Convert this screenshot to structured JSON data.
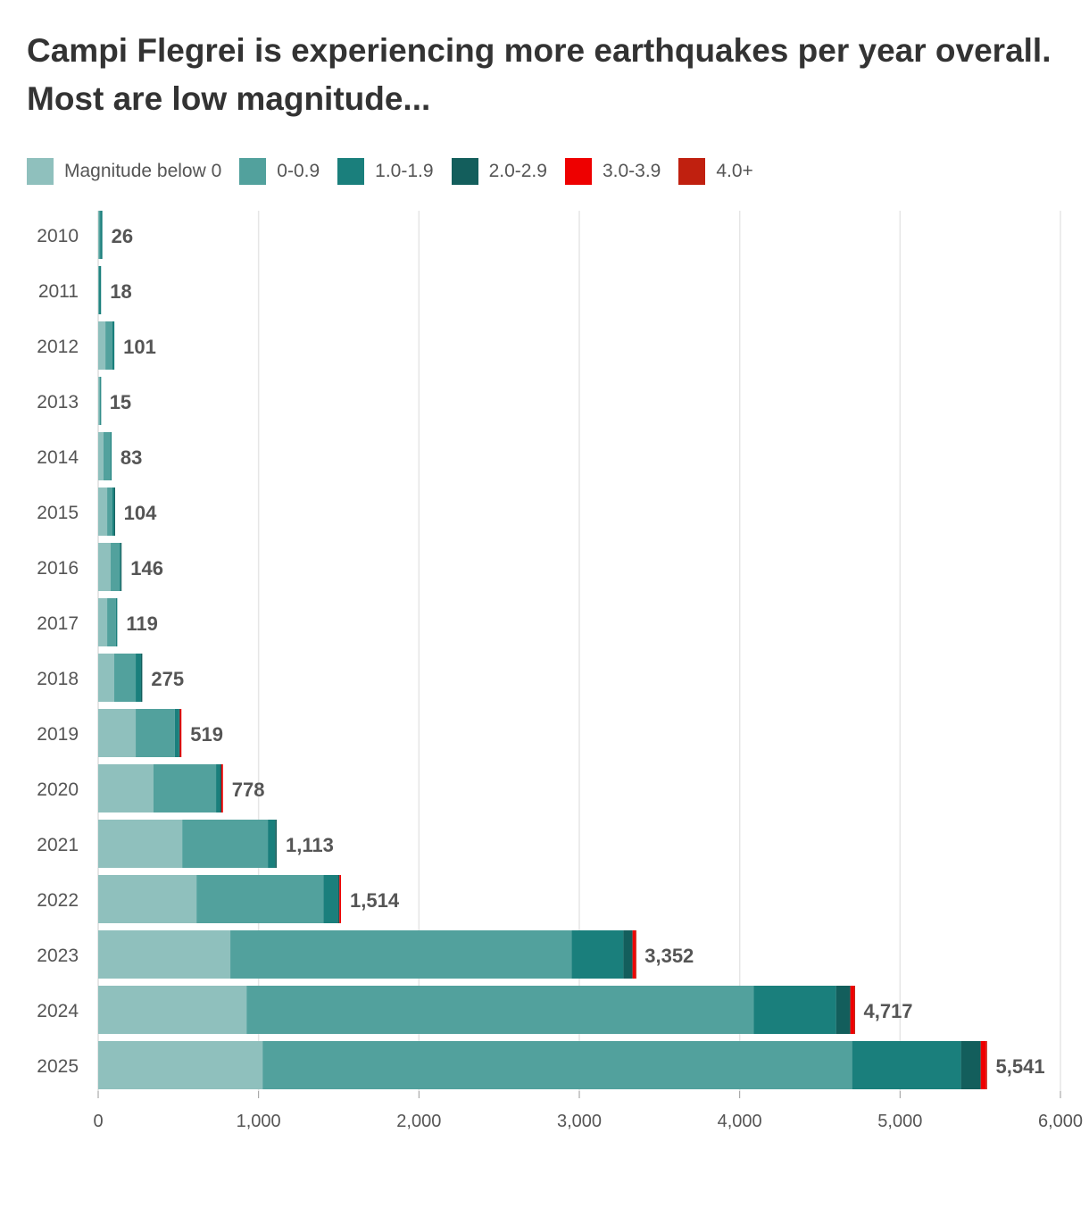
{
  "chart_data": {
    "type": "bar",
    "orientation": "horizontal",
    "stacked": true,
    "title": "Campi Flegrei is experiencing more earthquakes per year overall. Most are low magnitude...",
    "categories": [
      "2010",
      "2011",
      "2012",
      "2013",
      "2014",
      "2015",
      "2016",
      "2017",
      "2018",
      "2019",
      "2020",
      "2021",
      "2022",
      "2023",
      "2024",
      "2025"
    ],
    "totals": [
      26,
      18,
      101,
      15,
      83,
      104,
      146,
      119,
      275,
      519,
      778,
      1113,
      1514,
      3352,
      4717,
      5541
    ],
    "total_labels": [
      "26",
      "18",
      "101",
      "15",
      "83",
      "104",
      "146",
      "119",
      "275",
      "519",
      "778",
      "1,113",
      "1,514",
      "3,352",
      "4,717",
      "5,541"
    ],
    "series": [
      {
        "name": "Magnitude below 0",
        "color": "#8fc0bd",
        "values": [
          4,
          2,
          45,
          8,
          33,
          56,
          78,
          56,
          100,
          234,
          345,
          524,
          613,
          824,
          925,
          1025
        ]
      },
      {
        "name": "0-0.9",
        "color": "#52a19d",
        "values": [
          8,
          4,
          44,
          5,
          45,
          33,
          56,
          55,
          134,
          244,
          390,
          534,
          791,
          2128,
          3163,
          3676
        ]
      },
      {
        "name": "1.0-1.9",
        "color": "#1a7f7c",
        "values": [
          14,
          12,
          12,
          2,
          5,
          11,
          6,
          8,
          33,
          27,
          25,
          45,
          89,
          323,
          513,
          679
        ]
      },
      {
        "name": "2.0-2.9",
        "color": "#135e5c",
        "values": [
          0,
          0,
          0,
          0,
          0,
          4,
          6,
          0,
          8,
          4,
          8,
          10,
          11,
          57,
          89,
          123
        ]
      },
      {
        "name": "3.0-3.9",
        "color": "#ee0000",
        "values": [
          0,
          0,
          0,
          0,
          0,
          0,
          0,
          0,
          0,
          10,
          10,
          0,
          10,
          18,
          24,
          34
        ]
      },
      {
        "name": "4.0+",
        "color": "#c0200f",
        "values": [
          0,
          0,
          0,
          0,
          0,
          0,
          0,
          0,
          0,
          0,
          0,
          0,
          0,
          2,
          3,
          4
        ]
      }
    ],
    "xlim": [
      0,
      6000
    ],
    "xticks": [
      0,
      1000,
      2000,
      3000,
      4000,
      5000,
      6000
    ],
    "xtick_labels": [
      "0",
      "1,000",
      "2,000",
      "3,000",
      "4,000",
      "5,000",
      "6,000"
    ],
    "grid": true,
    "legend": "top"
  }
}
